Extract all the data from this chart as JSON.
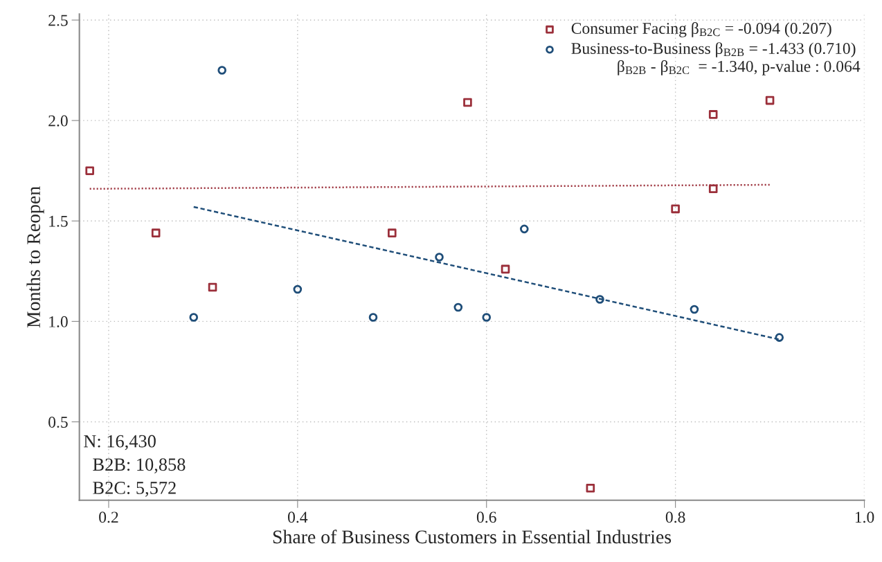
{
  "chart_data": {
    "type": "scatter",
    "xlabel": "Share of Business Customers in Essential Industries",
    "ylabel": "Months to Reopen",
    "xlim": [
      0.169,
      1.0
    ],
    "ylim": [
      0.11,
      2.53
    ],
    "xticks": [
      {
        "value": 0.2,
        "label": "0.2"
      },
      {
        "value": 0.4,
        "label": "0.4"
      },
      {
        "value": 0.6,
        "label": "0.6"
      },
      {
        "value": 0.8,
        "label": "0.8"
      },
      {
        "value": 1.0,
        "label": "1.0"
      }
    ],
    "yticks": [
      {
        "value": 0.5,
        "label": "0.5"
      },
      {
        "value": 1.0,
        "label": "1.0"
      },
      {
        "value": 1.5,
        "label": "1.5"
      },
      {
        "value": 2.0,
        "label": "2.0"
      },
      {
        "value": 2.5,
        "label": "2.5"
      }
    ],
    "grid": true,
    "legend": "top right",
    "series": [
      {
        "name": "Consumer Facing β$_{B2C}$ = -0.094 (0.207)",
        "color": "#9b2f3a",
        "marker": "square",
        "x": [
          0.18,
          0.25,
          0.31,
          0.5,
          0.58,
          0.62,
          0.71,
          0.8,
          0.84,
          0.84,
          0.9
        ],
        "values": [
          1.75,
          1.44,
          1.17,
          1.44,
          2.09,
          1.26,
          0.17,
          1.56,
          1.66,
          2.03,
          2.1
        ]
      },
      {
        "name": "Business-to-Business β$_{B2B}$ = -1.433 (0.710)",
        "color": "#1f4e79",
        "marker": "circle",
        "x": [
          0.29,
          0.32,
          0.4,
          0.48,
          0.55,
          0.57,
          0.6,
          0.64,
          0.72,
          0.82,
          0.91
        ],
        "values": [
          1.02,
          2.25,
          1.16,
          1.02,
          1.32,
          1.07,
          1.02,
          1.46,
          1.11,
          1.06,
          0.92
        ]
      },
      {
        "type": "line",
        "color": "#9b2f3a",
        "line_style": "dotted",
        "x": [
          0.18,
          0.9
        ],
        "values": [
          1.66,
          1.68
        ]
      },
      {
        "type": "line",
        "color": "#1f4e79",
        "line_style": "dashed",
        "x": [
          0.29,
          0.91
        ],
        "values": [
          1.57,
          0.91
        ]
      }
    ],
    "annotations": [
      "β$_{B2B}$ - β$_{B2C}$  = -1.340, p-value : 0.064",
      "N: 16,430",
      "  B2B: 10,858",
      "  B2C: 5,572"
    ]
  }
}
